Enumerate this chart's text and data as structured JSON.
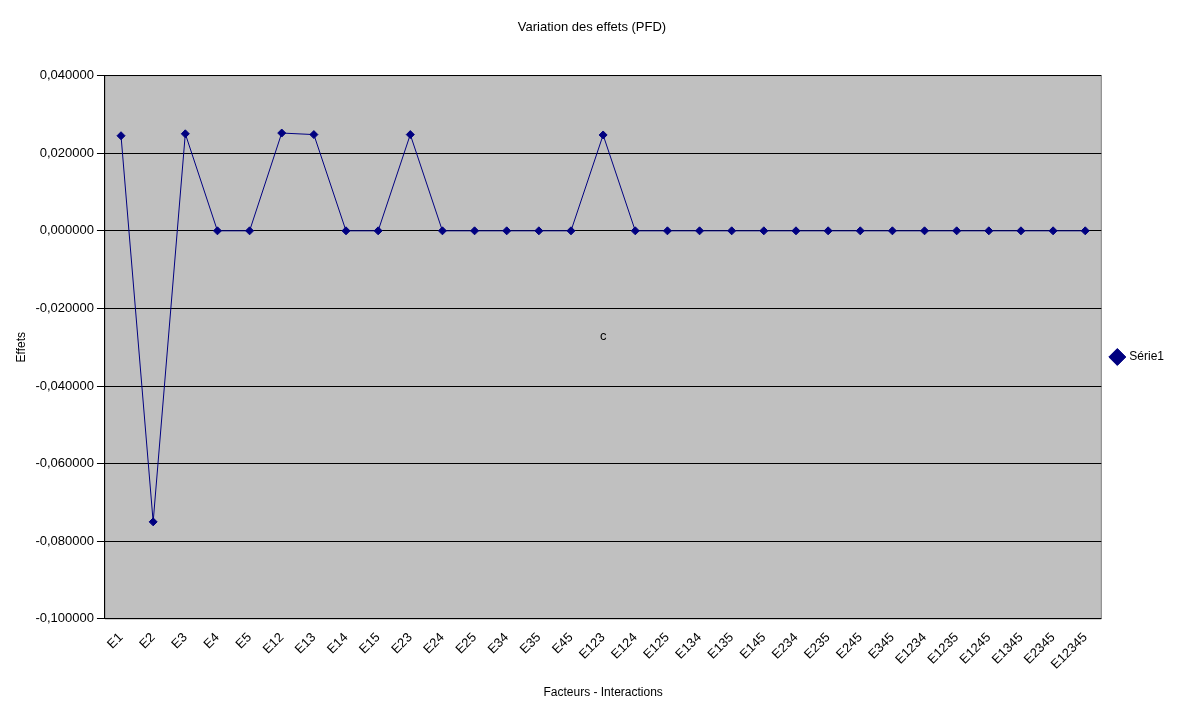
{
  "chart_data": {
    "type": "line",
    "title": "Variation des effets (PFD)",
    "xlabel": "Facteurs - Interactions",
    "ylabel": "Effets",
    "categories": [
      "E1",
      "E2",
      "E3",
      "E4",
      "E5",
      "E12",
      "E13",
      "E14",
      "E15",
      "E23",
      "E24",
      "E25",
      "E34",
      "E35",
      "E45",
      "E123",
      "E124",
      "E125",
      "E134",
      "E135",
      "E145",
      "E234",
      "E235",
      "E245",
      "E345",
      "E1234",
      "E1235",
      "E1245",
      "E1345",
      "E2345",
      "E12345"
    ],
    "series": [
      {
        "name": "Série1",
        "color": "#000080",
        "values": [
          0.0245,
          -0.075,
          0.025,
          0,
          0,
          0.0252,
          0.0248,
          0,
          0,
          0.0248,
          0,
          0,
          0,
          0,
          0,
          0.0247,
          0,
          0,
          0,
          0,
          0,
          0,
          0,
          0,
          0,
          0,
          0,
          0,
          0,
          0,
          0
        ]
      }
    ],
    "ylim": [
      -0.1,
      0.04
    ],
    "yticks": [
      {
        "value": -0.1,
        "label": "-0,100000"
      },
      {
        "value": -0.08,
        "label": "-0,080000"
      },
      {
        "value": -0.06,
        "label": "-0,060000"
      },
      {
        "value": -0.04,
        "label": "-0,040000"
      },
      {
        "value": -0.02,
        "label": "-0,020000"
      },
      {
        "value": 0,
        "label": "0,000000"
      },
      {
        "value": 0.02,
        "label": "0,020000"
      },
      {
        "value": 0.04,
        "label": "0,040000"
      }
    ],
    "annotations": [
      "c"
    ],
    "grid": "y",
    "legend": "right",
    "marker": "diamond",
    "line_style": "solid"
  }
}
